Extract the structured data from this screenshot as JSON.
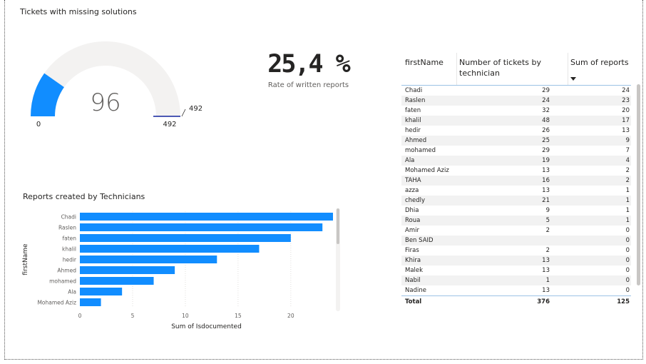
{
  "gauge": {
    "title": "Tickets with missing solutions",
    "value": 96,
    "min": 0,
    "max": 492,
    "target": 492,
    "value_label": "96",
    "min_label": "0",
    "max_label": "492",
    "target_label": "492",
    "fill_color": "#118DFF",
    "track_color": "#F3F2F1",
    "target_color": "#12239E"
  },
  "kpi": {
    "value": "25,4 %",
    "label": "Rate of written reports"
  },
  "chart_data": {
    "type": "bar",
    "orientation": "horizontal",
    "title": "Reports created by Technicians",
    "xlabel": "Sum of Isdocumented",
    "ylabel": "firstName",
    "categories": [
      "Chadi",
      "Raslen",
      "faten",
      "khalil",
      "hedir",
      "Ahmed",
      "mohamed",
      "Ala",
      "Mohamed Aziz"
    ],
    "values": [
      24,
      23,
      20,
      17,
      13,
      9,
      7,
      4,
      2
    ],
    "xlim": [
      0,
      24
    ],
    "xticks": [
      0,
      5,
      10,
      15,
      20
    ],
    "grid": true,
    "color": "#118DFF"
  },
  "table": {
    "headers": [
      "firstName",
      "Number of tickets by technician",
      "Sum of reports"
    ],
    "rows": [
      [
        "Chadi",
        "29",
        "24"
      ],
      [
        "Raslen",
        "24",
        "23"
      ],
      [
        "faten",
        "32",
        "20"
      ],
      [
        "khalil",
        "48",
        "17"
      ],
      [
        "hedir",
        "26",
        "13"
      ],
      [
        "Ahmed",
        "25",
        "9"
      ],
      [
        "mohamed",
        "29",
        "7"
      ],
      [
        "Ala",
        "19",
        "4"
      ],
      [
        "Mohamed Aziz",
        "13",
        "2"
      ],
      [
        "TAHA",
        "16",
        "2"
      ],
      [
        "azza",
        "13",
        "1"
      ],
      [
        "chedly",
        "21",
        "1"
      ],
      [
        "Dhia",
        "9",
        "1"
      ],
      [
        "Roua",
        "5",
        "1"
      ],
      [
        "Amir",
        "2",
        "0"
      ],
      [
        "Ben SAID",
        "",
        "0"
      ],
      [
        "Firas",
        "2",
        "0"
      ],
      [
        "Khira",
        "13",
        "0"
      ],
      [
        "Malek",
        "13",
        "0"
      ],
      [
        "Nabil",
        "1",
        "0"
      ],
      [
        "Nadine",
        "13",
        "0"
      ]
    ],
    "total": [
      "Total",
      "376",
      "125"
    ]
  }
}
